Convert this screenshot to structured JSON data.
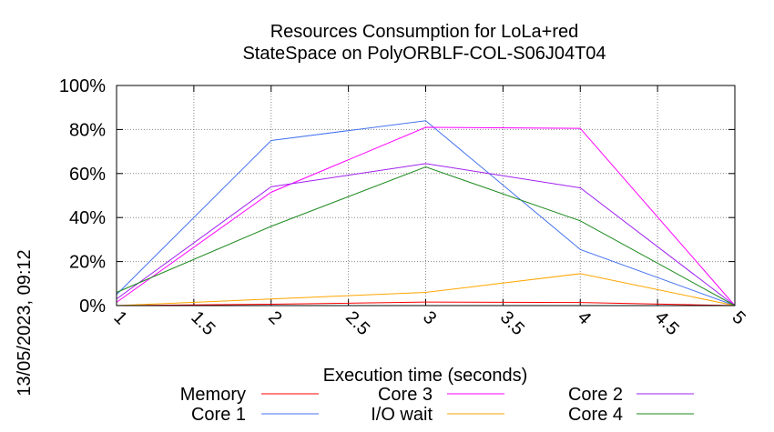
{
  "chart_data": {
    "type": "line",
    "title_line1": "Resources Consumption for LoLa+red",
    "title_line2": "StateSpace on PolyORBLF-COL-S06J04T04",
    "xlabel": "Execution time (seconds)",
    "ylabel": "",
    "side_label": "13/05/2023, 09:12",
    "xlim": [
      1,
      5
    ],
    "ylim": [
      0,
      100
    ],
    "x_ticks": [
      "1",
      "1.5",
      "2",
      "2.5",
      "3",
      "3.5",
      "4",
      "4.5",
      "5"
    ],
    "y_ticks": [
      "0%",
      "20%",
      "40%",
      "60%",
      "80%",
      "100%"
    ],
    "grid": true,
    "legend_position": "bottom",
    "x": [
      1,
      2,
      3,
      4,
      5
    ],
    "series": [
      {
        "name": "Memory",
        "color": "#ff0000",
        "values": [
          0,
          0.6,
          1.6,
          1.4,
          0
        ]
      },
      {
        "name": "Core 1",
        "color": "#4472f0",
        "values": [
          5,
          75,
          84,
          25.5,
          0
        ]
      },
      {
        "name": "Core 3",
        "color": "#ff00ff",
        "values": [
          1.5,
          51.5,
          81,
          80.5,
          0
        ]
      },
      {
        "name": "I/O wait",
        "color": "#ffa500",
        "values": [
          0,
          3,
          6,
          14.5,
          0
        ]
      },
      {
        "name": "Core 2",
        "color": "#a020f0",
        "values": [
          3,
          54,
          64.5,
          53.5,
          0
        ]
      },
      {
        "name": "Core 4",
        "color": "#1e8a1e",
        "values": [
          6,
          36,
          63,
          38.5,
          0
        ]
      }
    ]
  }
}
